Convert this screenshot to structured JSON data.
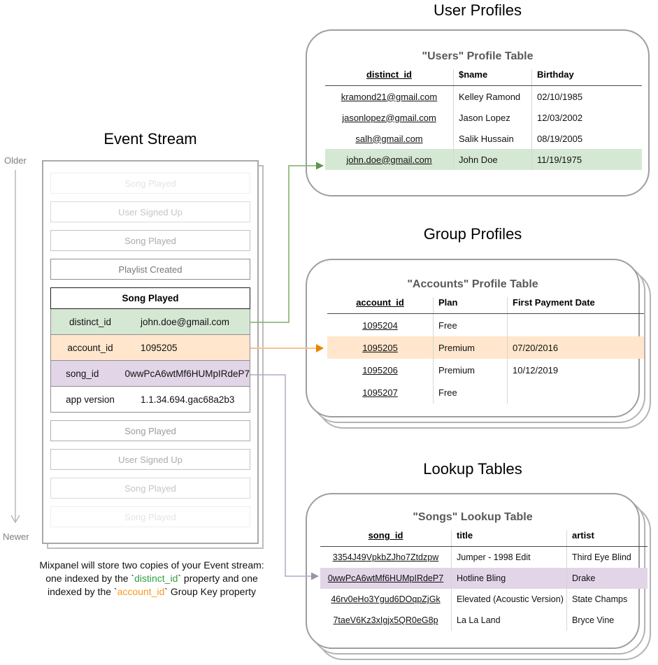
{
  "event_stream": {
    "title": "Event Stream",
    "older_label": "Older",
    "newer_label": "Newer",
    "events_before": [
      {
        "label": "Song Played",
        "muted_level": 1
      },
      {
        "label": "User Signed Up",
        "muted_level": 2
      },
      {
        "label": "Song Played",
        "muted_level": 3
      },
      {
        "label": "Playlist Created",
        "muted_level": 4
      }
    ],
    "expanded_event": {
      "title": "Song Played",
      "properties": [
        {
          "key": "distinct_id",
          "value": "john.doe@gmail.com",
          "highlight": "green"
        },
        {
          "key": "account_id",
          "value": "1095205",
          "highlight": "orange"
        },
        {
          "key": "song_id",
          "value": "0wwPcA6wtMf6HUMpIRdeP7",
          "highlight": "purple"
        },
        {
          "key": "app version",
          "value": "1.1.34.694.gac68a2b3",
          "highlight": "none"
        }
      ]
    },
    "events_after": [
      {
        "label": "Song Played",
        "muted_level": 5
      },
      {
        "label": "User Signed Up",
        "muted_level": 3
      },
      {
        "label": "Song Played",
        "muted_level": 2
      },
      {
        "label": "Song Played",
        "muted_level": 1
      }
    ]
  },
  "caption": {
    "line1": "Mixpanel will store two copies of your Event stream:",
    "line2_pre": "one indexed by the `",
    "line2_key": "distinct_id",
    "line2_post": "` property and one",
    "line3_pre": "indexed by the `",
    "line3_key": "account_id",
    "line3_post": "` Group Key property"
  },
  "user_profiles": {
    "section_title": "User Profiles",
    "table_title": "\"Users\" Profile Table",
    "columns": [
      "distinct_id",
      "$name",
      "Birthday"
    ],
    "rows": [
      [
        "kramond21@gmail.com",
        "Kelley Ramond",
        "02/10/1985"
      ],
      [
        "jasonlopez@gmail.com",
        "Jason Lopez",
        "12/03/2002"
      ],
      [
        "salh@gmail.com",
        "Salik Hussain",
        "08/19/2005"
      ],
      [
        "john.doe@gmail.com",
        "John Doe",
        "11/19/1975"
      ]
    ],
    "highlighted_row": 3,
    "highlight_color": "#d5e8d4"
  },
  "group_profiles": {
    "section_title": "Group Profiles",
    "table_title": "\"Accounts\" Profile Table",
    "columns": [
      "account_id",
      "Plan",
      "First Payment Date"
    ],
    "rows": [
      [
        "1095204",
        "Free",
        ""
      ],
      [
        "1095205",
        "Premium",
        "07/20/2016"
      ],
      [
        "1095206",
        "Premium",
        "10/12/2019"
      ],
      [
        "1095207",
        "Free",
        ""
      ]
    ],
    "highlighted_row": 1,
    "highlight_color": "#ffe6cc"
  },
  "lookup_tables": {
    "section_title": "Lookup Tables",
    "table_title": "\"Songs\" Lookup Table",
    "columns": [
      "song_id",
      "title",
      "artist"
    ],
    "rows": [
      [
        "3354J49VpkbZJho7Ztdzpw",
        "Jumper - 1998 Edit",
        "Third Eye Blind"
      ],
      [
        "0wwPcA6wtMf6HUMpIRdeP7",
        "Hotline Bling",
        "Drake"
      ],
      [
        "46rv0eHo3Ygud6DOqpZjGk",
        "Elevated (Acoustic Version)",
        "State Champs"
      ],
      [
        "7taeV6Kz3xIgjx5QR0eG8p",
        "La La Land",
        "Bryce Vine"
      ]
    ],
    "highlighted_row": 1,
    "highlight_color": "#e1d5e7"
  },
  "colors": {
    "highlight_green": "#d5e8d4",
    "highlight_orange": "#ffe6cc",
    "highlight_purple": "#e1d5e7",
    "connector_green": "#7fae63",
    "connector_green_head": "#5d9648",
    "connector_orange": "#f2c38e",
    "connector_orange_head": "#ef8008",
    "connector_purple": "#b9a5c9",
    "connector_purple_head": "#9e90ab",
    "timeline_gray": "#b8b8b8",
    "caption_key_green": "#2fa042",
    "caption_key_orange": "#f59a1e"
  }
}
